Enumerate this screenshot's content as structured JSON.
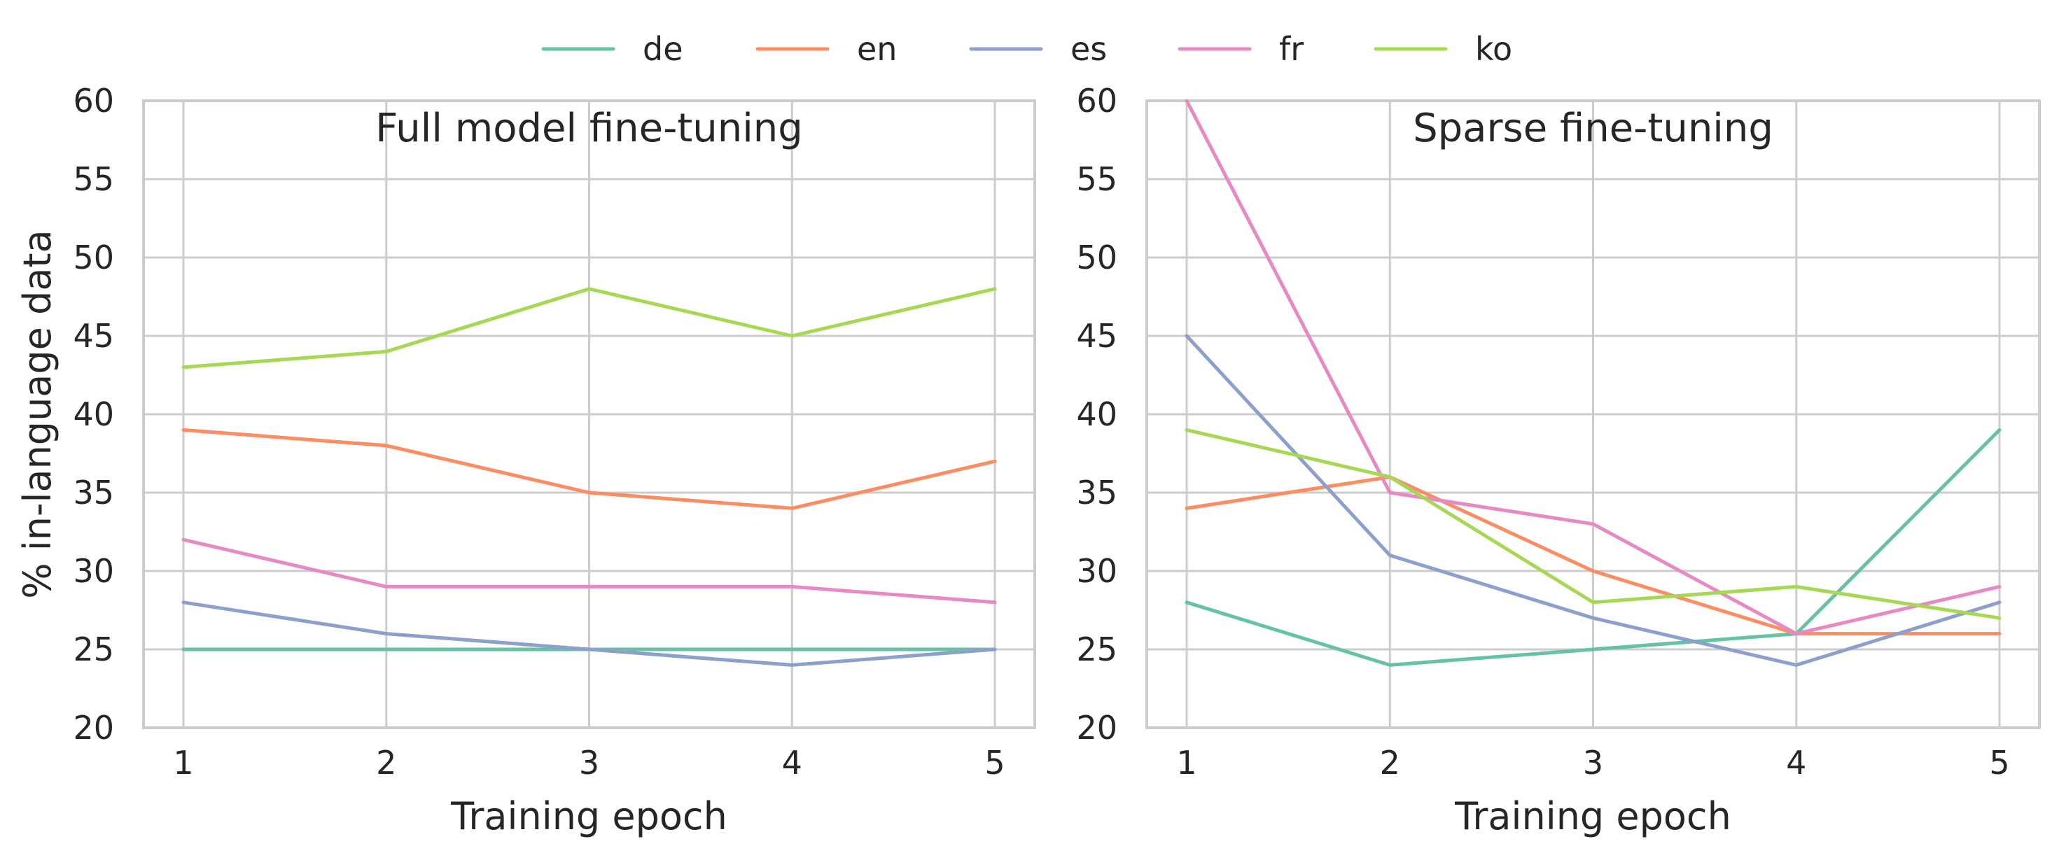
{
  "legend": {
    "placement": "top-center",
    "entries": [
      {
        "name": "de",
        "color": "#66c2a5"
      },
      {
        "name": "en",
        "color": "#fc8d62"
      },
      {
        "name": "es",
        "color": "#8da0cb"
      },
      {
        "name": "fr",
        "color": "#e78ac3"
      },
      {
        "name": "ko",
        "color": "#a6d854"
      }
    ]
  },
  "chart_data": [
    {
      "type": "line",
      "title": "Full model fine-tuning",
      "xlabel": "Training epoch",
      "ylabel": "% in-language data",
      "x": [
        1,
        2,
        3,
        4,
        5
      ],
      "xticks": [
        "1",
        "2",
        "3",
        "4",
        "5"
      ],
      "ylim": [
        20,
        60
      ],
      "yticks": [
        "20",
        "25",
        "30",
        "35",
        "40",
        "45",
        "50",
        "55",
        "60"
      ],
      "grid": true,
      "series": [
        {
          "name": "de",
          "values": [
            25,
            25,
            25,
            25,
            25
          ]
        },
        {
          "name": "en",
          "values": [
            39,
            38,
            35,
            34,
            37
          ]
        },
        {
          "name": "es",
          "values": [
            28,
            26,
            25,
            24,
            25
          ]
        },
        {
          "name": "fr",
          "values": [
            32,
            29,
            29,
            29,
            28
          ]
        },
        {
          "name": "ko",
          "values": [
            43,
            44,
            48,
            45,
            48
          ]
        }
      ]
    },
    {
      "type": "line",
      "title": "Sparse fine-tuning",
      "xlabel": "Training epoch",
      "ylabel": "",
      "x": [
        1,
        2,
        3,
        4,
        5
      ],
      "xticks": [
        "1",
        "2",
        "3",
        "4",
        "5"
      ],
      "ylim": [
        20,
        60
      ],
      "yticks": [
        "20",
        "25",
        "30",
        "35",
        "40",
        "45",
        "50",
        "55",
        "60"
      ],
      "grid": true,
      "series": [
        {
          "name": "de",
          "values": [
            28,
            24,
            25,
            26,
            39
          ]
        },
        {
          "name": "en",
          "values": [
            34,
            36,
            30,
            26,
            26
          ]
        },
        {
          "name": "es",
          "values": [
            45,
            31,
            27,
            24,
            28
          ]
        },
        {
          "name": "fr",
          "values": [
            60,
            35,
            33,
            26,
            29
          ]
        },
        {
          "name": "ko",
          "values": [
            39,
            36,
            28,
            29,
            27
          ]
        }
      ]
    }
  ]
}
